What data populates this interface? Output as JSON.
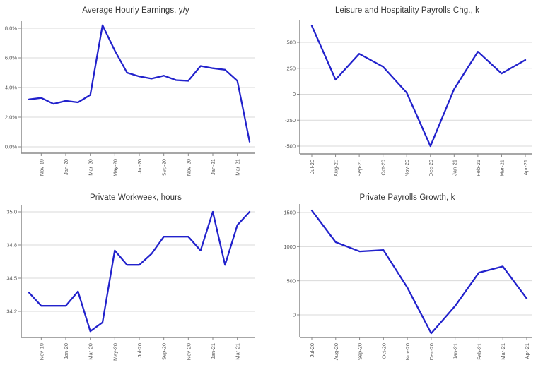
{
  "page": {
    "background": "#ffffff"
  },
  "styles": {
    "line_color": "#2222cc",
    "grid_color": "#d9d9d9",
    "axis_color": "#8a8a8a",
    "axis_label_color": "#595959",
    "title_color": "#333333"
  },
  "chart_data": [
    {
      "type": "line",
      "title": "Average Hourly Earnings, y/y",
      "categories": [
        "Oct-19",
        "Nov-19",
        "Dec-19",
        "Jan-20",
        "Feb-20",
        "Mar-20",
        "Apr-20",
        "May-20",
        "Jun-20",
        "Jul-20",
        "Aug-20",
        "Sep-20",
        "Oct-20",
        "Nov-20",
        "Dec-20",
        "Jan-21",
        "Feb-21",
        "Mar-21",
        "Apr-21"
      ],
      "values": [
        3.2,
        3.3,
        2.9,
        3.1,
        3.0,
        3.5,
        8.2,
        6.5,
        5.0,
        4.75,
        4.6,
        4.8,
        4.5,
        4.45,
        5.45,
        5.3,
        5.2,
        4.45,
        0.35
      ],
      "x_tick_labels": [
        "Nov-19",
        "Jan-20",
        "Mar-20",
        "May-20",
        "Jul-20",
        "Sep-20",
        "Nov-20",
        "Jan-21",
        "Mar-21"
      ],
      "y_ticks": {
        "labels": [
          "0.0%",
          "2.0%",
          "4.0%",
          "6.0%",
          "8.0%"
        ],
        "values": [
          0,
          2,
          4,
          6,
          8
        ]
      },
      "ylim": [
        -0.4,
        8.4
      ],
      "grid": "horizontal",
      "legend": "none"
    },
    {
      "type": "line",
      "title": "Leisure and Hospitality Payrolls Chg., k",
      "categories": [
        "Jul-20",
        "Aug-20",
        "Sep-20",
        "Oct-20",
        "Nov-20",
        "Dec-20",
        "Jan-21",
        "Feb-21",
        "Mar-21",
        "Apr-21"
      ],
      "values": [
        660,
        140,
        390,
        265,
        15,
        -500,
        50,
        410,
        200,
        330
      ],
      "x_tick_labels": [
        "Jul-20",
        "Aug-20",
        "Sep-20",
        "Oct-20",
        "Nov-20",
        "Dec-20",
        "Jan-21",
        "Feb-21",
        "Mar-21",
        "Apr-21"
      ],
      "y_ticks": {
        "labels": [
          "-500",
          "-250",
          "0",
          "250",
          "500"
        ],
        "values": [
          -500,
          -250,
          0,
          250,
          500
        ]
      },
      "ylim": [
        -575,
        715
      ],
      "grid": "horizontal",
      "legend": "none"
    },
    {
      "type": "line",
      "title": "Private Workweek, hours",
      "categories": [
        "Oct-19",
        "Nov-19",
        "Dec-19",
        "Jan-20",
        "Feb-20",
        "Mar-20",
        "Apr-20",
        "May-20",
        "Jun-20",
        "Jul-20",
        "Aug-20",
        "Sep-20",
        "Oct-20",
        "Nov-20",
        "Dec-20",
        "Jan-21",
        "Feb-21",
        "Mar-21",
        "Apr-21"
      ],
      "values": [
        34.37,
        34.25,
        34.25,
        34.25,
        34.38,
        34.02,
        34.1,
        34.75,
        34.62,
        34.62,
        34.72,
        34.85,
        34.85,
        34.85,
        34.75,
        35.0,
        34.62,
        34.92,
        35.0
      ],
      "x_tick_labels": [
        "Nov-19",
        "Jan-20",
        "Mar-20",
        "May-20",
        "Jul-20",
        "Sep-20",
        "Nov-20",
        "Jan-21",
        "Mar-21"
      ],
      "y_ticks": {
        "labels": [
          "34.2",
          "34.5",
          "34.8",
          "35.0"
        ],
        "values": [
          34.2,
          34.5,
          34.8,
          35.0
        ]
      },
      "ylim": [
        33.95,
        35.05
      ],
      "grid": "horizontal",
      "legend": "none"
    },
    {
      "type": "line",
      "title": "Private Payrolls Growth, k",
      "categories": [
        "Jul-20",
        "Aug-20",
        "Sep-20",
        "Oct-20",
        "Nov-20",
        "Dec-20",
        "Jan-21",
        "Feb-21",
        "Mar-21",
        "Apr-21"
      ],
      "values": [
        1530,
        1065,
        930,
        950,
        400,
        -270,
        130,
        620,
        710,
        240
      ],
      "x_tick_labels": [
        "Jul-20",
        "Aug-20",
        "Sep-20",
        "Oct-20",
        "Nov-20",
        "Dec-20",
        "Jan-21",
        "Feb-21",
        "Mar-21",
        "Apr-21"
      ],
      "y_ticks": {
        "labels": [
          "0",
          "500",
          "1000",
          "1500"
        ],
        "values": [
          0,
          500,
          1000,
          1500
        ]
      },
      "ylim": [
        -330,
        1600
      ],
      "grid": "horizontal",
      "legend": "none"
    }
  ]
}
